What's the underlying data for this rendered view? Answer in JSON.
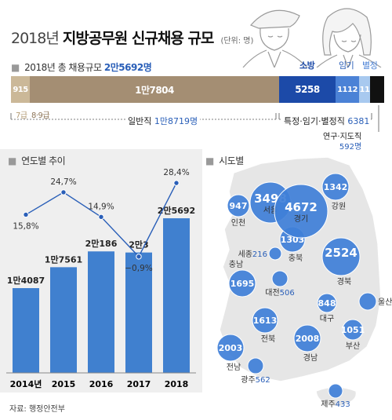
{
  "title": {
    "prefix": "2018년",
    "main": "지방공무원 신규채용 규모",
    "unit": "(단위: 명)"
  },
  "total": {
    "label": "2018년 총 채용규모",
    "value": "2만5692명"
  },
  "breakdown": {
    "segments": [
      {
        "key": "grade7",
        "display": "915",
        "value": 915,
        "color": "#cbb898",
        "label": "7급"
      },
      {
        "key": "grade89",
        "display": "1만7804",
        "value": 17804,
        "color": "#a48e73",
        "label": "8·9급"
      },
      {
        "key": "fire",
        "display": "5258",
        "value": 5258,
        "color": "#1c4aa8",
        "label": "소방"
      },
      {
        "key": "temp",
        "display": "1112",
        "value": 1112,
        "color": "#4b82d6",
        "label": "임기"
      },
      {
        "key": "separate",
        "display": "11",
        "value": 11,
        "color": "#a8c9ef",
        "label": "별정"
      },
      {
        "key": "research",
        "display": "",
        "value": 592,
        "color": "#111111",
        "label": ""
      }
    ],
    "general": {
      "label": "일반직",
      "value": "1만8719명"
    },
    "special": {
      "label": "특정·임기·별정직",
      "value": "6381"
    },
    "research": {
      "label": "연구·지도직",
      "value": "592명"
    }
  },
  "trend_title": "연도별 추이",
  "map_title": "시도별",
  "source": "자료: 행정안전부",
  "chart_data": [
    {
      "type": "bar",
      "title": "연도별 추이",
      "categories": [
        "2014년",
        "2015",
        "2016",
        "2017",
        "2018"
      ],
      "values": [
        14087,
        17561,
        20186,
        20003,
        25692
      ],
      "value_labels": [
        "1만4087",
        "1만7561",
        "2만186",
        "2만3",
        "2만5692"
      ],
      "growth": [
        15.8,
        24.7,
        14.9,
        -0.9,
        28.4
      ],
      "growth_labels": [
        "15,8%",
        "24,7%",
        "14,9%",
        "−0,9%",
        "28,4%"
      ],
      "bar_color": "#4080cf",
      "line_color": "#2a5fb8"
    },
    {
      "type": "scatter",
      "title": "시도별",
      "regions": [
        {
          "name": "서울",
          "value": 3498
        },
        {
          "name": "인천",
          "value": 947
        },
        {
          "name": "경기",
          "value": 4672
        },
        {
          "name": "강원",
          "value": 1342
        },
        {
          "name": "충남",
          "value": 1695
        },
        {
          "name": "세종",
          "value": 216
        },
        {
          "name": "충북",
          "value": 1303
        },
        {
          "name": "대전",
          "value": 506
        },
        {
          "name": "경북",
          "value": 2524
        },
        {
          "name": "전북",
          "value": 1613
        },
        {
          "name": "대구",
          "value": 848
        },
        {
          "name": "울산",
          "value": 470
        },
        {
          "name": "부산",
          "value": 1051
        },
        {
          "name": "광주",
          "value": 562
        },
        {
          "name": "전남",
          "value": 2003
        },
        {
          "name": "경남",
          "value": 2008
        },
        {
          "name": "제주",
          "value": 433
        }
      ],
      "bubble_color": "#3f7fd8",
      "land_color": "#e6e6e6"
    }
  ]
}
